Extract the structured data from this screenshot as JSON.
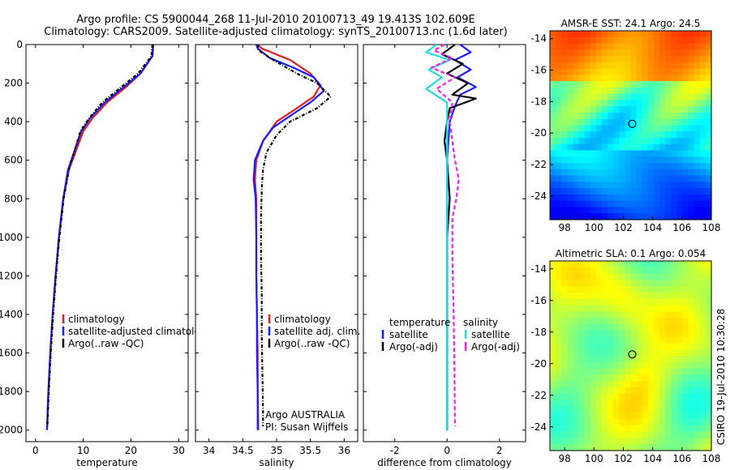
{
  "title_line1": "Argo profile: CS 5900044_268 11-Jul-2010 20100713_49 19.413S 102.609E",
  "title_line2": "Climatology: CARS2009. Satellite-adjusted climatology: synTS_20100713.nc (1.6d later)",
  "side_label": "CSIRO 19-Jul-2010 10:30:28",
  "argo_info_line1": "Argo AUSTRALIA",
  "argo_info_line2": "PI: Susan Wijffels",
  "colors": {
    "climatology": "#e02020",
    "satellite": "#1a1aff",
    "argo": "#000000",
    "sal_satellite": "#22dddd",
    "sal_argo": "#ee22ee"
  },
  "chart_data": [
    {
      "type": "line",
      "panel": "temperature",
      "xlabel": "temperature",
      "ylabel": "",
      "xlim": [
        -2,
        32
      ],
      "ylim": [
        2060,
        0
      ],
      "xticks": [
        0,
        10,
        20,
        30
      ],
      "yticks": [
        0,
        200,
        400,
        600,
        800,
        1000,
        1200,
        1400,
        1600,
        1800,
        2000
      ],
      "legend": [
        "climatology",
        "satellite-adjusted climatology",
        "Argo(..raw -QC)"
      ],
      "series": [
        {
          "name": "climatology",
          "color": "#e02020",
          "dash": "",
          "points": [
            [
              24.6,
              0
            ],
            [
              24.5,
              60
            ],
            [
              22,
              150
            ],
            [
              19,
              220
            ],
            [
              15,
              300
            ],
            [
              12,
              380
            ],
            [
              10,
              450
            ],
            [
              8.5,
              550
            ],
            [
              7,
              650
            ],
            [
              5.8,
              800
            ],
            [
              4.9,
              1000
            ],
            [
              4.2,
              1200
            ],
            [
              3.6,
              1400
            ],
            [
              3.1,
              1600
            ],
            [
              2.7,
              1800
            ],
            [
              2.4,
              2000
            ]
          ]
        },
        {
          "name": "satellite-adjusted climatology",
          "color": "#1a1aff",
          "dash": "",
          "points": [
            [
              24.7,
              0
            ],
            [
              24.5,
              60
            ],
            [
              22,
              150
            ],
            [
              18.5,
              220
            ],
            [
              14.5,
              300
            ],
            [
              11.5,
              380
            ],
            [
              9.6,
              450
            ],
            [
              8.2,
              550
            ],
            [
              6.8,
              650
            ],
            [
              5.8,
              800
            ],
            [
              4.9,
              1000
            ],
            [
              4.2,
              1200
            ],
            [
              3.6,
              1400
            ],
            [
              3.1,
              1600
            ],
            [
              2.7,
              1800
            ],
            [
              2.4,
              2000
            ]
          ]
        },
        {
          "name": "Argo(..raw -QC)",
          "color": "#000000",
          "dash": "4,2,1,2",
          "points": [
            [
              24.5,
              0
            ],
            [
              24.3,
              60
            ],
            [
              21.5,
              150
            ],
            [
              18,
              220
            ],
            [
              14,
              300
            ],
            [
              11.3,
              380
            ],
            [
              9.4,
              450
            ],
            [
              8.2,
              550
            ],
            [
              7,
              650
            ],
            [
              5.9,
              800
            ],
            [
              5,
              1000
            ],
            [
              4.3,
              1200
            ],
            [
              3.7,
              1400
            ],
            [
              3.2,
              1600
            ],
            [
              2.8,
              1800
            ],
            [
              2.5,
              1980
            ]
          ]
        }
      ]
    },
    {
      "type": "line",
      "panel": "salinity",
      "xlabel": "salinity",
      "ylabel": "",
      "xlim": [
        33.8,
        36.2
      ],
      "ylim": [
        2060,
        0
      ],
      "xticks": [
        34,
        34.5,
        35,
        35.5,
        36
      ],
      "legend": [
        "climatology",
        "satellite adj. clim.",
        "Argo(..raw -QC)"
      ],
      "series": [
        {
          "name": "climatology",
          "color": "#e02020",
          "dash": "",
          "points": [
            [
              34.72,
              0
            ],
            [
              34.78,
              20
            ],
            [
              35.2,
              80
            ],
            [
              35.5,
              150
            ],
            [
              35.65,
              210
            ],
            [
              35.55,
              270
            ],
            [
              35.3,
              330
            ],
            [
              35,
              400
            ],
            [
              34.9,
              450
            ],
            [
              34.8,
              500
            ],
            [
              34.7,
              600
            ],
            [
              34.68,
              700
            ],
            [
              34.7,
              800
            ],
            [
              34.7,
              1000
            ],
            [
              34.7,
              1200
            ],
            [
              34.71,
              1400
            ],
            [
              34.72,
              1600
            ],
            [
              34.72,
              1800
            ],
            [
              34.73,
              2000
            ]
          ]
        },
        {
          "name": "satellite adj. clim.",
          "color": "#1a1aff",
          "dash": "",
          "points": [
            [
              34.7,
              0
            ],
            [
              34.72,
              20
            ],
            [
              34.9,
              70
            ],
            [
              35.25,
              120
            ],
            [
              35.55,
              170
            ],
            [
              35.7,
              240
            ],
            [
              35.5,
              300
            ],
            [
              35.2,
              370
            ],
            [
              34.95,
              430
            ],
            [
              34.8,
              500
            ],
            [
              34.68,
              600
            ],
            [
              34.66,
              700
            ],
            [
              34.69,
              800
            ],
            [
              34.7,
              1000
            ],
            [
              34.7,
              1200
            ],
            [
              34.71,
              1400
            ],
            [
              34.71,
              1600
            ],
            [
              34.72,
              1800
            ],
            [
              34.72,
              2000
            ]
          ]
        },
        {
          "name": "Argo(..raw -QC)",
          "color": "#000000",
          "dash": "4,2,1,2",
          "points": [
            [
              34.72,
              0
            ],
            [
              34.73,
              30
            ],
            [
              35.0,
              90
            ],
            [
              35.3,
              150
            ],
            [
              35.6,
              200
            ],
            [
              35.8,
              270
            ],
            [
              35.6,
              330
            ],
            [
              35.2,
              400
            ],
            [
              35.0,
              470
            ],
            [
              34.85,
              560
            ],
            [
              34.8,
              650
            ],
            [
              34.78,
              750
            ],
            [
              34.77,
              900
            ],
            [
              34.77,
              1100
            ],
            [
              34.78,
              1300
            ],
            [
              34.78,
              1500
            ],
            [
              34.79,
              1700
            ],
            [
              34.8,
              1900
            ],
            [
              34.8,
              1980
            ]
          ]
        }
      ],
      "annotations": [
        "Argo AUSTRALIA",
        "PI: Susan Wijffels"
      ]
    },
    {
      "type": "line",
      "panel": "difference",
      "xlabel": "difference from climatology",
      "ylabel": "",
      "xlim": [
        -3.2,
        3.0
      ],
      "ylim": [
        2060,
        0
      ],
      "xticks": [
        -2,
        0,
        2
      ],
      "legend_temperature": {
        "heading": "temperature",
        "entries": [
          "satellite",
          "Argo(-adj)"
        ]
      },
      "legend_salinity": {
        "heading": "salinity",
        "entries": [
          "satellite",
          "Argo(-adj)"
        ]
      },
      "series": [
        {
          "name": "temperature satellite",
          "color": "#1a1aff",
          "dash": "",
          "points": [
            [
              0.5,
              0
            ],
            [
              0.9,
              40
            ],
            [
              0.3,
              80
            ],
            [
              0.9,
              130
            ],
            [
              0.4,
              170
            ],
            [
              1.1,
              220
            ],
            [
              0.5,
              260
            ],
            [
              0.3,
              320
            ],
            [
              0.1,
              400
            ],
            [
              0,
              600
            ],
            [
              0,
              1000
            ],
            [
              0,
              1400
            ],
            [
              0,
              1800
            ],
            [
              0,
              2000
            ]
          ]
        },
        {
          "name": "temperature Argo(-adj)",
          "color": "#000000",
          "dash": "",
          "points": [
            [
              0.3,
              0
            ],
            [
              -0.2,
              50
            ],
            [
              0.6,
              100
            ],
            [
              0,
              150
            ],
            [
              0.8,
              200
            ],
            [
              0.2,
              260
            ],
            [
              1.1,
              280
            ],
            [
              0.1,
              330
            ],
            [
              0,
              400
            ],
            [
              -0.1,
              500
            ],
            [
              0,
              600
            ],
            [
              0.1,
              800
            ],
            [
              0,
              1000
            ],
            [
              0,
              1400
            ],
            [
              0,
              1800
            ],
            [
              0,
              2000
            ]
          ]
        },
        {
          "name": "salinity satellite",
          "color": "#22dddd",
          "dash": "",
          "points": [
            [
              -0.4,
              0
            ],
            [
              -0.8,
              40
            ],
            [
              0.1,
              80
            ],
            [
              -0.7,
              130
            ],
            [
              -0.2,
              170
            ],
            [
              -0.8,
              230
            ],
            [
              0,
              300
            ],
            [
              0,
              400
            ],
            [
              0,
              800
            ],
            [
              0,
              1200
            ],
            [
              0,
              1600
            ],
            [
              0,
              2000
            ]
          ]
        },
        {
          "name": "salinity Argo(-adj)",
          "color": "#ee22ee",
          "dash": "5,3",
          "points": [
            [
              -0.1,
              0
            ],
            [
              -0.5,
              30
            ],
            [
              0.2,
              70
            ],
            [
              -0.6,
              120
            ],
            [
              0.3,
              170
            ],
            [
              -0.4,
              230
            ],
            [
              0.2,
              300
            ],
            [
              0.1,
              400
            ],
            [
              0.2,
              500
            ],
            [
              0.3,
              600
            ],
            [
              0.45,
              700
            ],
            [
              0.35,
              800
            ],
            [
              0.2,
              900
            ],
            [
              0.2,
              1100
            ],
            [
              0.25,
              1400
            ],
            [
              0.28,
              1700
            ],
            [
              0.3,
              1980
            ]
          ]
        }
      ]
    },
    {
      "type": "heatmap",
      "panel": "sst_map",
      "title": "AMSR-E SST: 24.1 Argo: 24.5",
      "xlim": [
        97,
        108
      ],
      "ylim": [
        -25.5,
        -13.5
      ],
      "xticks": [
        98,
        100,
        102,
        104,
        106,
        108
      ],
      "yticks": [
        -14,
        -16,
        -18,
        -20,
        -22,
        -24
      ],
      "marker": {
        "lon": 102.609,
        "lat": -19.413
      }
    },
    {
      "type": "heatmap",
      "panel": "sla_map",
      "title": "Altimetric SLA: 0.1 Argo: 0.054",
      "xlim": [
        97,
        108
      ],
      "ylim": [
        -25.5,
        -13.5
      ],
      "xticks": [
        98,
        100,
        102,
        104,
        106,
        108
      ],
      "yticks": [
        -14,
        -16,
        -18,
        -20,
        -22,
        -24
      ],
      "marker": {
        "lon": 102.609,
        "lat": -19.413
      }
    }
  ]
}
